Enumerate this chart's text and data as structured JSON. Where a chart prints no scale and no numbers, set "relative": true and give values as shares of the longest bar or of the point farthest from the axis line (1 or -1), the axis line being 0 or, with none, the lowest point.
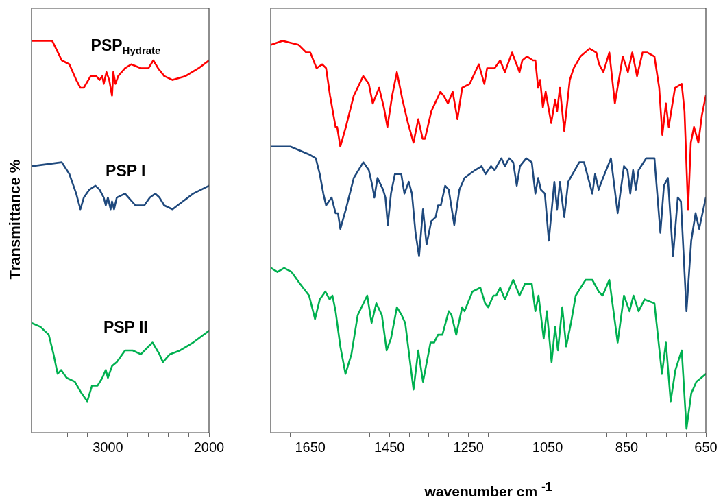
{
  "chart_data": [
    {
      "type": "line",
      "relative": true,
      "ylabel": "Transmittance %",
      "xlim": [
        3755,
        2000
      ],
      "xticks": [
        {
          "value": 3600,
          "label": null
        },
        {
          "value": 3400,
          "label": null
        },
        {
          "value": 3200,
          "label": null
        },
        3000,
        {
          "value": 2800,
          "label": null
        },
        {
          "value": 2600,
          "label": null
        },
        {
          "value": 2400,
          "label": null
        },
        {
          "value": 2200,
          "label": null
        },
        2000
      ],
      "marker": "none",
      "line_style": "solid",
      "grid": false,
      "series": [
        {
          "name": "PSP$_{Hydrate}$",
          "color": "#ff0000",
          "x": [
            3755,
            3551,
            3456,
            3381,
            3313,
            3272,
            3238,
            3170,
            3116,
            3082,
            3055,
            3041,
            3014,
            2987,
            2959,
            2946,
            2925,
            2898,
            2830,
            2769,
            2674,
            2599,
            2551,
            2504,
            2443,
            2361,
            2232,
            2103,
            2000
          ],
          "values": [
            1.0,
            1.0,
            0.95,
            0.94,
            0.9,
            0.88,
            0.88,
            0.91,
            0.91,
            0.9,
            0.91,
            0.89,
            0.92,
            0.9,
            0.86,
            0.92,
            0.89,
            0.91,
            0.93,
            0.94,
            0.93,
            0.93,
            0.95,
            0.93,
            0.91,
            0.9,
            0.91,
            0.93,
            0.95
          ]
        },
        {
          "name": "PSP I",
          "color": "#1f497d",
          "x": [
            3755,
            3456,
            3381,
            3313,
            3272,
            3238,
            3184,
            3123,
            3082,
            3041,
            3021,
            3000,
            2973,
            2959,
            2939,
            2912,
            2830,
            2728,
            2640,
            2585,
            2531,
            2490,
            2443,
            2361,
            2259,
            2157,
            2000
          ],
          "values": [
            0.68,
            0.69,
            0.66,
            0.61,
            0.57,
            0.6,
            0.62,
            0.63,
            0.62,
            0.6,
            0.58,
            0.6,
            0.57,
            0.59,
            0.57,
            0.6,
            0.61,
            0.58,
            0.58,
            0.6,
            0.61,
            0.6,
            0.58,
            0.57,
            0.59,
            0.61,
            0.63
          ]
        },
        {
          "name": "PSP II",
          "color": "#00b050",
          "x": [
            3755,
            3667,
            3585,
            3537,
            3497,
            3463,
            3408,
            3327,
            3259,
            3204,
            3157,
            3102,
            3055,
            3021,
            3000,
            2959,
            2912,
            2830,
            2755,
            2674,
            2599,
            2558,
            2490,
            2456,
            2388,
            2286,
            2157,
            2000
          ],
          "values": [
            0.28,
            0.27,
            0.25,
            0.2,
            0.15,
            0.16,
            0.14,
            0.13,
            0.1,
            0.08,
            0.12,
            0.12,
            0.14,
            0.16,
            0.14,
            0.17,
            0.18,
            0.21,
            0.21,
            0.2,
            0.22,
            0.23,
            0.2,
            0.18,
            0.2,
            0.21,
            0.23,
            0.26
          ]
        }
      ]
    },
    {
      "type": "line",
      "relative": true,
      "xlabel": "wavenumber cm $^{-1}$",
      "xlim": [
        1750,
        650
      ],
      "xticks": [
        {
          "value": 1700,
          "label": null
        },
        1650,
        {
          "value": 1600,
          "label": null
        },
        {
          "value": 1550,
          "label": null
        },
        {
          "value": 1500,
          "label": null
        },
        1450,
        {
          "value": 1400,
          "label": null
        },
        {
          "value": 1350,
          "label": null
        },
        {
          "value": 1300,
          "label": null
        },
        1250,
        {
          "value": 1200,
          "label": null
        },
        {
          "value": 1150,
          "label": null
        },
        {
          "value": 1100,
          "label": null
        },
        1050,
        {
          "value": 1000,
          "label": null
        },
        {
          "value": 950,
          "label": null
        },
        {
          "value": 900,
          "label": null
        },
        850,
        {
          "value": 800,
          "label": null
        },
        {
          "value": 750,
          "label": null
        },
        {
          "value": 700,
          "label": null
        },
        650
      ],
      "marker": "none",
      "line_style": "solid",
      "grid": false,
      "series": [
        {
          "color": "#ff0000",
          "x": [
            1749,
            1720,
            1680,
            1660,
            1650,
            1634,
            1620,
            1610,
            1600,
            1586,
            1582,
            1574,
            1560,
            1540,
            1516,
            1502,
            1492,
            1476,
            1464,
            1455,
            1443,
            1431,
            1417,
            1403,
            1389,
            1377,
            1366,
            1360,
            1344,
            1321,
            1313,
            1302,
            1290,
            1278,
            1266,
            1247,
            1224,
            1210,
            1203,
            1184,
            1170,
            1158,
            1140,
            1121,
            1114,
            1102,
            1087,
            1081,
            1074,
            1069,
            1062,
            1055,
            1041,
            1031,
            1026,
            1019,
            1008,
            994,
            984,
            967,
            944,
            927,
            920,
            909,
            894,
            880,
            860,
            847,
            836,
            824,
            810,
            798,
            780,
            768,
            760,
            751,
            744,
            728,
            711,
            704,
            695,
            688,
            680,
            669,
            660,
            650
          ],
          "values": [
            0.99,
            1.0,
            0.99,
            0.97,
            0.97,
            0.93,
            0.94,
            0.93,
            0.86,
            0.78,
            0.78,
            0.73,
            0.78,
            0.86,
            0.91,
            0.89,
            0.84,
            0.88,
            0.83,
            0.78,
            0.86,
            0.92,
            0.85,
            0.79,
            0.74,
            0.8,
            0.75,
            0.75,
            0.82,
            0.87,
            0.86,
            0.84,
            0.87,
            0.8,
            0.88,
            0.89,
            0.94,
            0.89,
            0.93,
            0.93,
            0.95,
            0.92,
            0.97,
            0.92,
            0.95,
            0.96,
            0.95,
            0.95,
            0.88,
            0.9,
            0.83,
            0.87,
            0.79,
            0.85,
            0.82,
            0.88,
            0.77,
            0.9,
            0.93,
            0.96,
            0.98,
            0.97,
            0.94,
            0.92,
            0.97,
            0.84,
            0.96,
            0.92,
            0.97,
            0.91,
            0.97,
            0.97,
            0.96,
            0.88,
            0.76,
            0.84,
            0.78,
            0.88,
            0.89,
            0.82,
            0.57,
            0.74,
            0.78,
            0.74,
            0.81,
            0.86
          ]
        },
        {
          "color": "#1f497d",
          "x": [
            1749,
            1700,
            1653,
            1636,
            1626,
            1617,
            1610,
            1596,
            1586,
            1580,
            1574,
            1560,
            1540,
            1516,
            1502,
            1493,
            1488,
            1480,
            1466,
            1460,
            1454,
            1446,
            1436,
            1420,
            1412,
            1401,
            1393,
            1384,
            1375,
            1365,
            1356,
            1344,
            1333,
            1327,
            1320,
            1309,
            1300,
            1286,
            1273,
            1260,
            1247,
            1233,
            1217,
            1207,
            1193,
            1184,
            1167,
            1158,
            1147,
            1137,
            1128,
            1120,
            1104,
            1090,
            1081,
            1074,
            1067,
            1057,
            1047,
            1033,
            1026,
            1019,
            1008,
            998,
            987,
            970,
            958,
            937,
            930,
            921,
            914,
            890,
            873,
            857,
            848,
            841,
            834,
            827,
            820,
            801,
            780,
            765,
            756,
            746,
            733,
            721,
            713,
            699,
            687,
            676,
            667,
            650
          ],
          "values": [
            0.73,
            0.73,
            0.71,
            0.7,
            0.66,
            0.61,
            0.58,
            0.6,
            0.56,
            0.56,
            0.52,
            0.57,
            0.65,
            0.69,
            0.67,
            0.63,
            0.6,
            0.65,
            0.62,
            0.6,
            0.53,
            0.61,
            0.66,
            0.66,
            0.61,
            0.64,
            0.61,
            0.51,
            0.45,
            0.57,
            0.48,
            0.54,
            0.55,
            0.58,
            0.58,
            0.63,
            0.62,
            0.53,
            0.62,
            0.65,
            0.66,
            0.67,
            0.68,
            0.66,
            0.68,
            0.67,
            0.7,
            0.68,
            0.7,
            0.69,
            0.63,
            0.68,
            0.7,
            0.69,
            0.61,
            0.65,
            0.62,
            0.61,
            0.49,
            0.64,
            0.57,
            0.64,
            0.55,
            0.64,
            0.66,
            0.69,
            0.69,
            0.61,
            0.66,
            0.62,
            0.64,
            0.7,
            0.56,
            0.68,
            0.67,
            0.61,
            0.67,
            0.62,
            0.67,
            0.7,
            0.7,
            0.51,
            0.63,
            0.65,
            0.45,
            0.6,
            0.59,
            0.31,
            0.49,
            0.56,
            0.52,
            0.6
          ]
        },
        {
          "color": "#00b050",
          "x": [
            1749,
            1733,
            1716,
            1697,
            1676,
            1653,
            1638,
            1626,
            1612,
            1601,
            1594,
            1586,
            1574,
            1561,
            1546,
            1530,
            1506,
            1495,
            1483,
            1469,
            1457,
            1446,
            1431,
            1419,
            1410,
            1389,
            1377,
            1365,
            1346,
            1337,
            1327,
            1316,
            1300,
            1293,
            1281,
            1266,
            1260,
            1240,
            1220,
            1208,
            1200,
            1187,
            1180,
            1170,
            1158,
            1137,
            1121,
            1107,
            1090,
            1081,
            1073,
            1060,
            1052,
            1040,
            1031,
            1024,
            1013,
            1003,
            991,
            979,
            954,
            937,
            921,
            911,
            894,
            873,
            857,
            843,
            833,
            820,
            805,
            780,
            761,
            751,
            739,
            727,
            711,
            699,
            687,
            674,
            650
          ],
          "values": [
            0.42,
            0.41,
            0.42,
            0.41,
            0.38,
            0.35,
            0.29,
            0.34,
            0.36,
            0.34,
            0.35,
            0.31,
            0.22,
            0.15,
            0.2,
            0.3,
            0.35,
            0.28,
            0.33,
            0.3,
            0.21,
            0.24,
            0.32,
            0.3,
            0.28,
            0.11,
            0.21,
            0.13,
            0.23,
            0.23,
            0.25,
            0.25,
            0.31,
            0.3,
            0.25,
            0.32,
            0.31,
            0.36,
            0.37,
            0.33,
            0.32,
            0.35,
            0.35,
            0.37,
            0.34,
            0.39,
            0.35,
            0.38,
            0.38,
            0.31,
            0.35,
            0.24,
            0.31,
            0.18,
            0.27,
            0.21,
            0.32,
            0.22,
            0.28,
            0.35,
            0.39,
            0.39,
            0.36,
            0.35,
            0.39,
            0.23,
            0.35,
            0.31,
            0.35,
            0.31,
            0.34,
            0.33,
            0.15,
            0.23,
            0.08,
            0.16,
            0.21,
            0.01,
            0.1,
            0.13,
            0.15
          ]
        }
      ]
    }
  ]
}
